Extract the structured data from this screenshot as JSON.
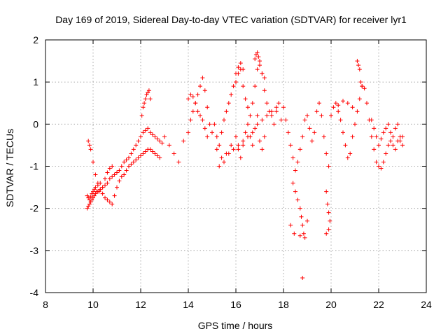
{
  "chart_data": {
    "type": "scatter",
    "title": "Day 169 of 2019, Sidereal Day-to-day VTEC variation (SDTVAR) for receiver lyr1",
    "xlabel": "GPS time / hours",
    "ylabel": "SDTVAR / TECUs",
    "xlim": [
      8,
      24
    ],
    "ylim": [
      -4,
      2
    ],
    "xticks": [
      8,
      10,
      12,
      14,
      16,
      18,
      20,
      22,
      24
    ],
    "yticks": [
      -4,
      -3,
      -2,
      -1,
      0,
      1,
      2
    ],
    "grid": true,
    "marker": "+",
    "marker_color": "#ff0000",
    "series": [
      {
        "name": "SDTVAR",
        "x": [
          9.75,
          9.8,
          9.85,
          9.9,
          9.95,
          10.0,
          10.05,
          10.1,
          10.2,
          10.3,
          10.4,
          10.5,
          10.6,
          10.7,
          10.8,
          10.9,
          11.0,
          11.1,
          11.2,
          11.3,
          11.4,
          11.5,
          11.6,
          11.7,
          11.8,
          11.9,
          12.0,
          12.1,
          12.2,
          12.3,
          12.4,
          12.5,
          12.6,
          12.7,
          12.8,
          12.9,
          9.75,
          9.8,
          9.85,
          9.9,
          9.95,
          10.0,
          10.05,
          10.1,
          10.15,
          10.2,
          10.3,
          10.4,
          10.5,
          10.6,
          10.7,
          10.8,
          10.9,
          11.0,
          11.1,
          11.2,
          11.3,
          11.4,
          11.5,
          11.6,
          11.7,
          11.8,
          11.9,
          12.0,
          12.1,
          12.2,
          12.3,
          12.4,
          12.5,
          12.6,
          12.7,
          12.8,
          9.8,
          9.85,
          9.9,
          10.0,
          10.1,
          10.2,
          10.25,
          10.3,
          10.4,
          10.5,
          10.6,
          10.7,
          10.8,
          12.05,
          12.1,
          12.15,
          12.2,
          12.25,
          12.3,
          12.35,
          12.4,
          13.0,
          13.2,
          13.4,
          13.6,
          13.8,
          14.0,
          14.1,
          14.2,
          14.3,
          14.4,
          14.5,
          14.6,
          14.7,
          14.8,
          14.9,
          14.0,
          14.1,
          14.2,
          14.3,
          14.4,
          14.5,
          14.6,
          14.7,
          14.8,
          15.0,
          15.1,
          15.2,
          15.3,
          15.4,
          15.5,
          15.6,
          15.7,
          15.8,
          15.9,
          16.0,
          16.1,
          16.2,
          16.3,
          16.4,
          16.5,
          16.6,
          16.7,
          16.8,
          16.9,
          17.0,
          17.1,
          17.2,
          17.3,
          17.4,
          17.5,
          17.6,
          17.7,
          17.8,
          17.9,
          15.2,
          15.4,
          15.6,
          15.8,
          16.0,
          16.1,
          16.2,
          16.3,
          16.4,
          16.5,
          16.6,
          16.7,
          16.8,
          16.9,
          17.0,
          17.1,
          17.2,
          15.3,
          15.5,
          15.7,
          15.9,
          16.1,
          16.3,
          16.5,
          16.7,
          16.9,
          17.1,
          17.3,
          17.5,
          17.7,
          16.0,
          16.1,
          16.2,
          16.3,
          16.8,
          16.85,
          16.9,
          16.95,
          17.0,
          17.1,
          17.2,
          18.0,
          18.1,
          18.2,
          18.3,
          18.4,
          18.5,
          18.6,
          18.7,
          18.8,
          18.9,
          19.0,
          19.1,
          19.2,
          19.3,
          19.4,
          19.5,
          19.6,
          19.7,
          19.8,
          19.9,
          18.4,
          18.5,
          18.6,
          18.7,
          18.75,
          18.8,
          18.85,
          18.9,
          19.0,
          19.8,
          19.85,
          19.9,
          19.95,
          18.3,
          18.45,
          18.7,
          18.8,
          19.8,
          19.9,
          20.0,
          20.1,
          20.2,
          20.3,
          20.4,
          20.5,
          20.6,
          20.7,
          20.8,
          20.9,
          21.0,
          21.1,
          21.2,
          21.3,
          21.4,
          21.5,
          21.6,
          21.7,
          21.8,
          21.9,
          20.3,
          20.5,
          20.7,
          20.9,
          21.1,
          21.15,
          21.2,
          21.25,
          21.3,
          22.0,
          22.1,
          22.2,
          22.3,
          22.4,
          22.5,
          22.6,
          22.7,
          22.8,
          22.9,
          23.0,
          21.7,
          21.8,
          21.9,
          22.0,
          22.1,
          22.2,
          22.3,
          22.4,
          22.5,
          22.6,
          22.7,
          22.8,
          22.9,
          23.0
        ],
        "y": [
          -1.7,
          -1.75,
          -1.8,
          -1.72,
          -1.65,
          -1.6,
          -1.55,
          -1.5,
          -1.45,
          -1.4,
          -1.5,
          -1.45,
          -1.4,
          -1.3,
          -1.25,
          -1.2,
          -1.15,
          -1.1,
          -1.0,
          -0.9,
          -0.85,
          -0.8,
          -0.7,
          -0.6,
          -0.5,
          -0.4,
          -0.3,
          -0.2,
          -0.15,
          -0.1,
          -0.2,
          -0.25,
          -0.3,
          -0.35,
          -0.4,
          -0.45,
          -2.0,
          -1.95,
          -1.9,
          -1.85,
          -1.8,
          -1.75,
          -1.7,
          -1.65,
          -1.6,
          -1.6,
          -1.55,
          -1.65,
          -1.75,
          -1.8,
          -1.85,
          -1.9,
          -1.7,
          -1.5,
          -1.35,
          -1.25,
          -1.2,
          -1.1,
          -1.0,
          -0.95,
          -0.9,
          -0.85,
          -0.8,
          -0.75,
          -0.7,
          -0.65,
          -0.6,
          -0.6,
          -0.65,
          -0.7,
          -0.75,
          -0.8,
          -0.4,
          -0.5,
          -0.6,
          -0.9,
          -1.2,
          -1.4,
          -1.6,
          -1.55,
          -1.5,
          -1.3,
          -1.15,
          -1.05,
          -1.0,
          0.2,
          0.4,
          0.5,
          0.6,
          0.7,
          0.75,
          0.8,
          0.6,
          -0.3,
          -0.5,
          -0.7,
          -0.9,
          -0.4,
          -0.2,
          0.1,
          0.3,
          0.5,
          0.7,
          0.9,
          1.1,
          0.8,
          0.4,
          0.0,
          0.6,
          0.7,
          0.65,
          0.5,
          0.3,
          0.2,
          0.1,
          -0.1,
          -0.3,
          -0.2,
          0.0,
          -0.3,
          -0.5,
          -0.2,
          0.1,
          0.3,
          0.5,
          0.7,
          0.9,
          1.0,
          1.2,
          1.3,
          0.9,
          0.6,
          0.4,
          0.2,
          0.5,
          0.9,
          1.3,
          1.5,
          1.2,
          0.8,
          0.5,
          0.3,
          0.2,
          0.0,
          0.3,
          0.5,
          0.1,
          -0.6,
          -0.8,
          -0.7,
          -0.5,
          -0.3,
          -0.6,
          -0.8,
          -0.5,
          -0.2,
          0.0,
          -0.3,
          -0.5,
          -0.1,
          0.2,
          -0.4,
          -0.6,
          -0.3,
          -1.0,
          -0.9,
          -0.7,
          -0.6,
          -0.5,
          -0.4,
          -0.3,
          -0.2,
          0.0,
          0.1,
          0.2,
          0.3,
          0.4,
          1.2,
          1.35,
          1.45,
          1.3,
          1.55,
          1.65,
          1.7,
          1.6,
          1.4,
          1.2,
          1.1,
          0.4,
          0.1,
          -0.2,
          -0.5,
          -0.8,
          -1.1,
          -0.9,
          -0.6,
          -0.3,
          0.1,
          0.2,
          -0.1,
          -0.4,
          -0.2,
          0.3,
          0.5,
          0.2,
          -0.3,
          -0.7,
          -1.0,
          -1.4,
          -1.6,
          -1.8,
          -2.0,
          -2.2,
          -2.4,
          -2.6,
          -2.7,
          -2.3,
          -1.6,
          -1.9,
          -2.1,
          -2.3,
          -2.4,
          -2.6,
          -2.65,
          -3.65,
          -2.6,
          -2.5,
          0.2,
          0.4,
          0.5,
          0.3,
          0.1,
          -0.2,
          -0.5,
          -0.8,
          -0.7,
          -0.3,
          0.0,
          0.3,
          0.6,
          0.9,
          0.85,
          0.5,
          0.1,
          -0.3,
          -0.6,
          -0.9,
          0.45,
          0.55,
          0.5,
          0.4,
          1.5,
          1.4,
          1.3,
          1.0,
          0.9,
          -1.0,
          -1.05,
          -0.9,
          -0.7,
          -0.5,
          -0.4,
          -0.5,
          -0.6,
          -0.4,
          -0.3,
          -0.5,
          0.1,
          -0.1,
          -0.3,
          -0.5,
          -0.35,
          -0.2,
          -0.1,
          0.0,
          -0.2,
          -0.3,
          -0.1,
          0.0,
          -0.4,
          -0.3
        ]
      }
    ]
  }
}
